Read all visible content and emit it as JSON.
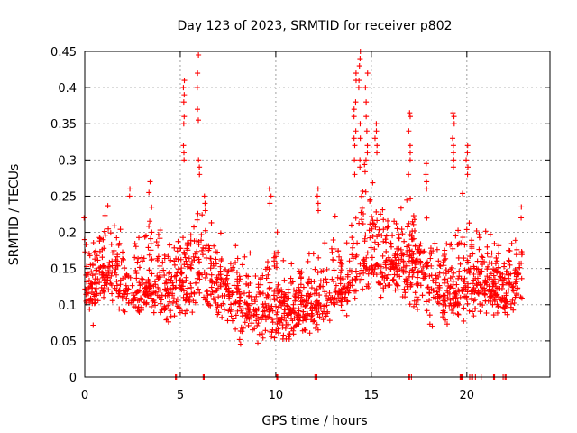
{
  "chart_data": {
    "type": "scatter",
    "title": "Day 123 of 2023, SRMTID for receiver p802",
    "xlabel": "GPS time / hours",
    "ylabel": "SRMTID / TECUs",
    "xlim": [
      0,
      24.35
    ],
    "ylim": [
      0,
      0.45
    ],
    "xticks": [
      0,
      5,
      10,
      15,
      20
    ],
    "yticks": [
      0,
      0.05,
      0.1,
      0.15,
      0.2,
      0.25,
      0.3,
      0.35,
      0.4,
      0.45
    ],
    "xtick_labels": [
      "0",
      "5",
      "10",
      "15",
      "20"
    ],
    "ytick_labels": [
      "0",
      "0.05",
      "0.1",
      "0.15",
      "0.2",
      "0.25",
      "0.3",
      "0.35",
      "0.4",
      "0.45"
    ],
    "grid": true,
    "marker": "+",
    "color": "#ff0000",
    "series": [
      {
        "name": "SRMTID",
        "profile": {
          "x": [
            0.0,
            0.5,
            1.0,
            1.5,
            2.0,
            2.5,
            3.0,
            3.5,
            4.0,
            4.5,
            5.0,
            5.5,
            6.0,
            6.5,
            7.0,
            7.5,
            8.0,
            8.5,
            9.0,
            9.5,
            10.0,
            10.5,
            11.0,
            11.5,
            12.0,
            12.5,
            13.0,
            13.5,
            14.0,
            14.5,
            15.0,
            15.5,
            16.0,
            16.5,
            17.0,
            17.5,
            18.0,
            18.5,
            19.0,
            19.5,
            20.0,
            20.5,
            21.0,
            21.5,
            22.0,
            22.5,
            22.9
          ],
          "median": [
            0.125,
            0.125,
            0.14,
            0.15,
            0.125,
            0.12,
            0.12,
            0.13,
            0.125,
            0.12,
            0.13,
            0.14,
            0.15,
            0.14,
            0.13,
            0.12,
            0.11,
            0.1,
            0.095,
            0.1,
            0.1,
            0.09,
            0.09,
            0.095,
            0.1,
            0.11,
            0.12,
            0.125,
            0.14,
            0.16,
            0.18,
            0.17,
            0.16,
            0.16,
            0.15,
            0.15,
            0.14,
            0.13,
            0.12,
            0.13,
            0.14,
            0.13,
            0.13,
            0.12,
            0.12,
            0.13,
            0.14
          ],
          "high": [
            0.2,
            0.21,
            0.25,
            0.26,
            0.22,
            0.22,
            0.24,
            0.26,
            0.22,
            0.2,
            0.21,
            0.24,
            0.25,
            0.24,
            0.21,
            0.2,
            0.2,
            0.19,
            0.18,
            0.19,
            0.25,
            0.17,
            0.17,
            0.19,
            0.2,
            0.2,
            0.26,
            0.2,
            0.27,
            0.33,
            0.3,
            0.28,
            0.27,
            0.26,
            0.31,
            0.26,
            0.28,
            0.25,
            0.24,
            0.26,
            0.27,
            0.22,
            0.25,
            0.2,
            0.2,
            0.2,
            0.23
          ],
          "low": [
            0.08,
            0.06,
            0.08,
            0.08,
            0.07,
            0.06,
            0.07,
            0.08,
            0.07,
            0.06,
            0.06,
            0.07,
            0.08,
            0.06,
            0.05,
            0.05,
            0.04,
            0.04,
            0.03,
            0.04,
            0.04,
            0.04,
            0.04,
            0.05,
            0.05,
            0.06,
            0.07,
            0.06,
            0.08,
            0.1,
            0.11,
            0.09,
            0.08,
            0.08,
            0.07,
            0.07,
            0.06,
            0.05,
            0.06,
            0.05,
            0.07,
            0.06,
            0.08,
            0.07,
            0.07,
            0.08,
            0.1
          ]
        },
        "spikes": [
          {
            "x": 0.0,
            "values": [
              0.22,
              0.19
            ]
          },
          {
            "x": 2.4,
            "values": [
              0.26,
              0.25
            ]
          },
          {
            "x": 3.4,
            "values": [
              0.27,
              0.255
            ]
          },
          {
            "x": 5.2,
            "values": [
              0.41,
              0.4,
              0.39,
              0.38,
              0.36,
              0.35,
              0.32,
              0.31,
              0.3
            ]
          },
          {
            "x": 5.95,
            "values": [
              0.445,
              0.42,
              0.4,
              0.37,
              0.355,
              0.3,
              0.29,
              0.28
            ]
          },
          {
            "x": 6.3,
            "values": [
              0.25,
              0.24,
              0.23
            ]
          },
          {
            "x": 9.7,
            "values": [
              0.26,
              0.25,
              0.24
            ]
          },
          {
            "x": 12.2,
            "values": [
              0.26,
              0.25,
              0.24,
              0.23
            ]
          },
          {
            "x": 14.15,
            "values": [
              0.42,
              0.41,
              0.38,
              0.37,
              0.36,
              0.34,
              0.33,
              0.32,
              0.3,
              0.28
            ]
          },
          {
            "x": 14.4,
            "values": [
              0.45,
              0.44,
              0.43,
              0.41,
              0.4,
              0.35,
              0.33,
              0.3,
              0.29
            ]
          },
          {
            "x": 14.75,
            "values": [
              0.42,
              0.4,
              0.38,
              0.36,
              0.34,
              0.32,
              0.31,
              0.3
            ]
          },
          {
            "x": 15.25,
            "values": [
              0.35,
              0.34,
              0.33,
              0.32,
              0.31
            ]
          },
          {
            "x": 17.0,
            "values": [
              0.365,
              0.36,
              0.34,
              0.32,
              0.31,
              0.3,
              0.28
            ]
          },
          {
            "x": 17.85,
            "values": [
              0.295,
              0.28,
              0.27,
              0.26
            ]
          },
          {
            "x": 19.3,
            "values": [
              0.365,
              0.36,
              0.35,
              0.33,
              0.32,
              0.31,
              0.3,
              0.29
            ]
          },
          {
            "x": 20.0,
            "values": [
              0.32,
              0.31,
              0.3,
              0.29,
              0.28
            ]
          },
          {
            "x": 22.9,
            "values": [
              0.235,
              0.22
            ]
          }
        ],
        "zero_points_x": [
          4.75,
          4.8,
          6.2,
          6.25,
          10.05,
          10.1,
          12.05,
          12.15,
          16.95,
          17.0,
          17.1,
          19.65,
          19.7,
          19.75,
          20.15,
          20.25,
          20.3,
          20.45,
          20.75,
          21.4,
          21.45,
          21.9,
          22.0,
          22.05
        ]
      }
    ]
  }
}
